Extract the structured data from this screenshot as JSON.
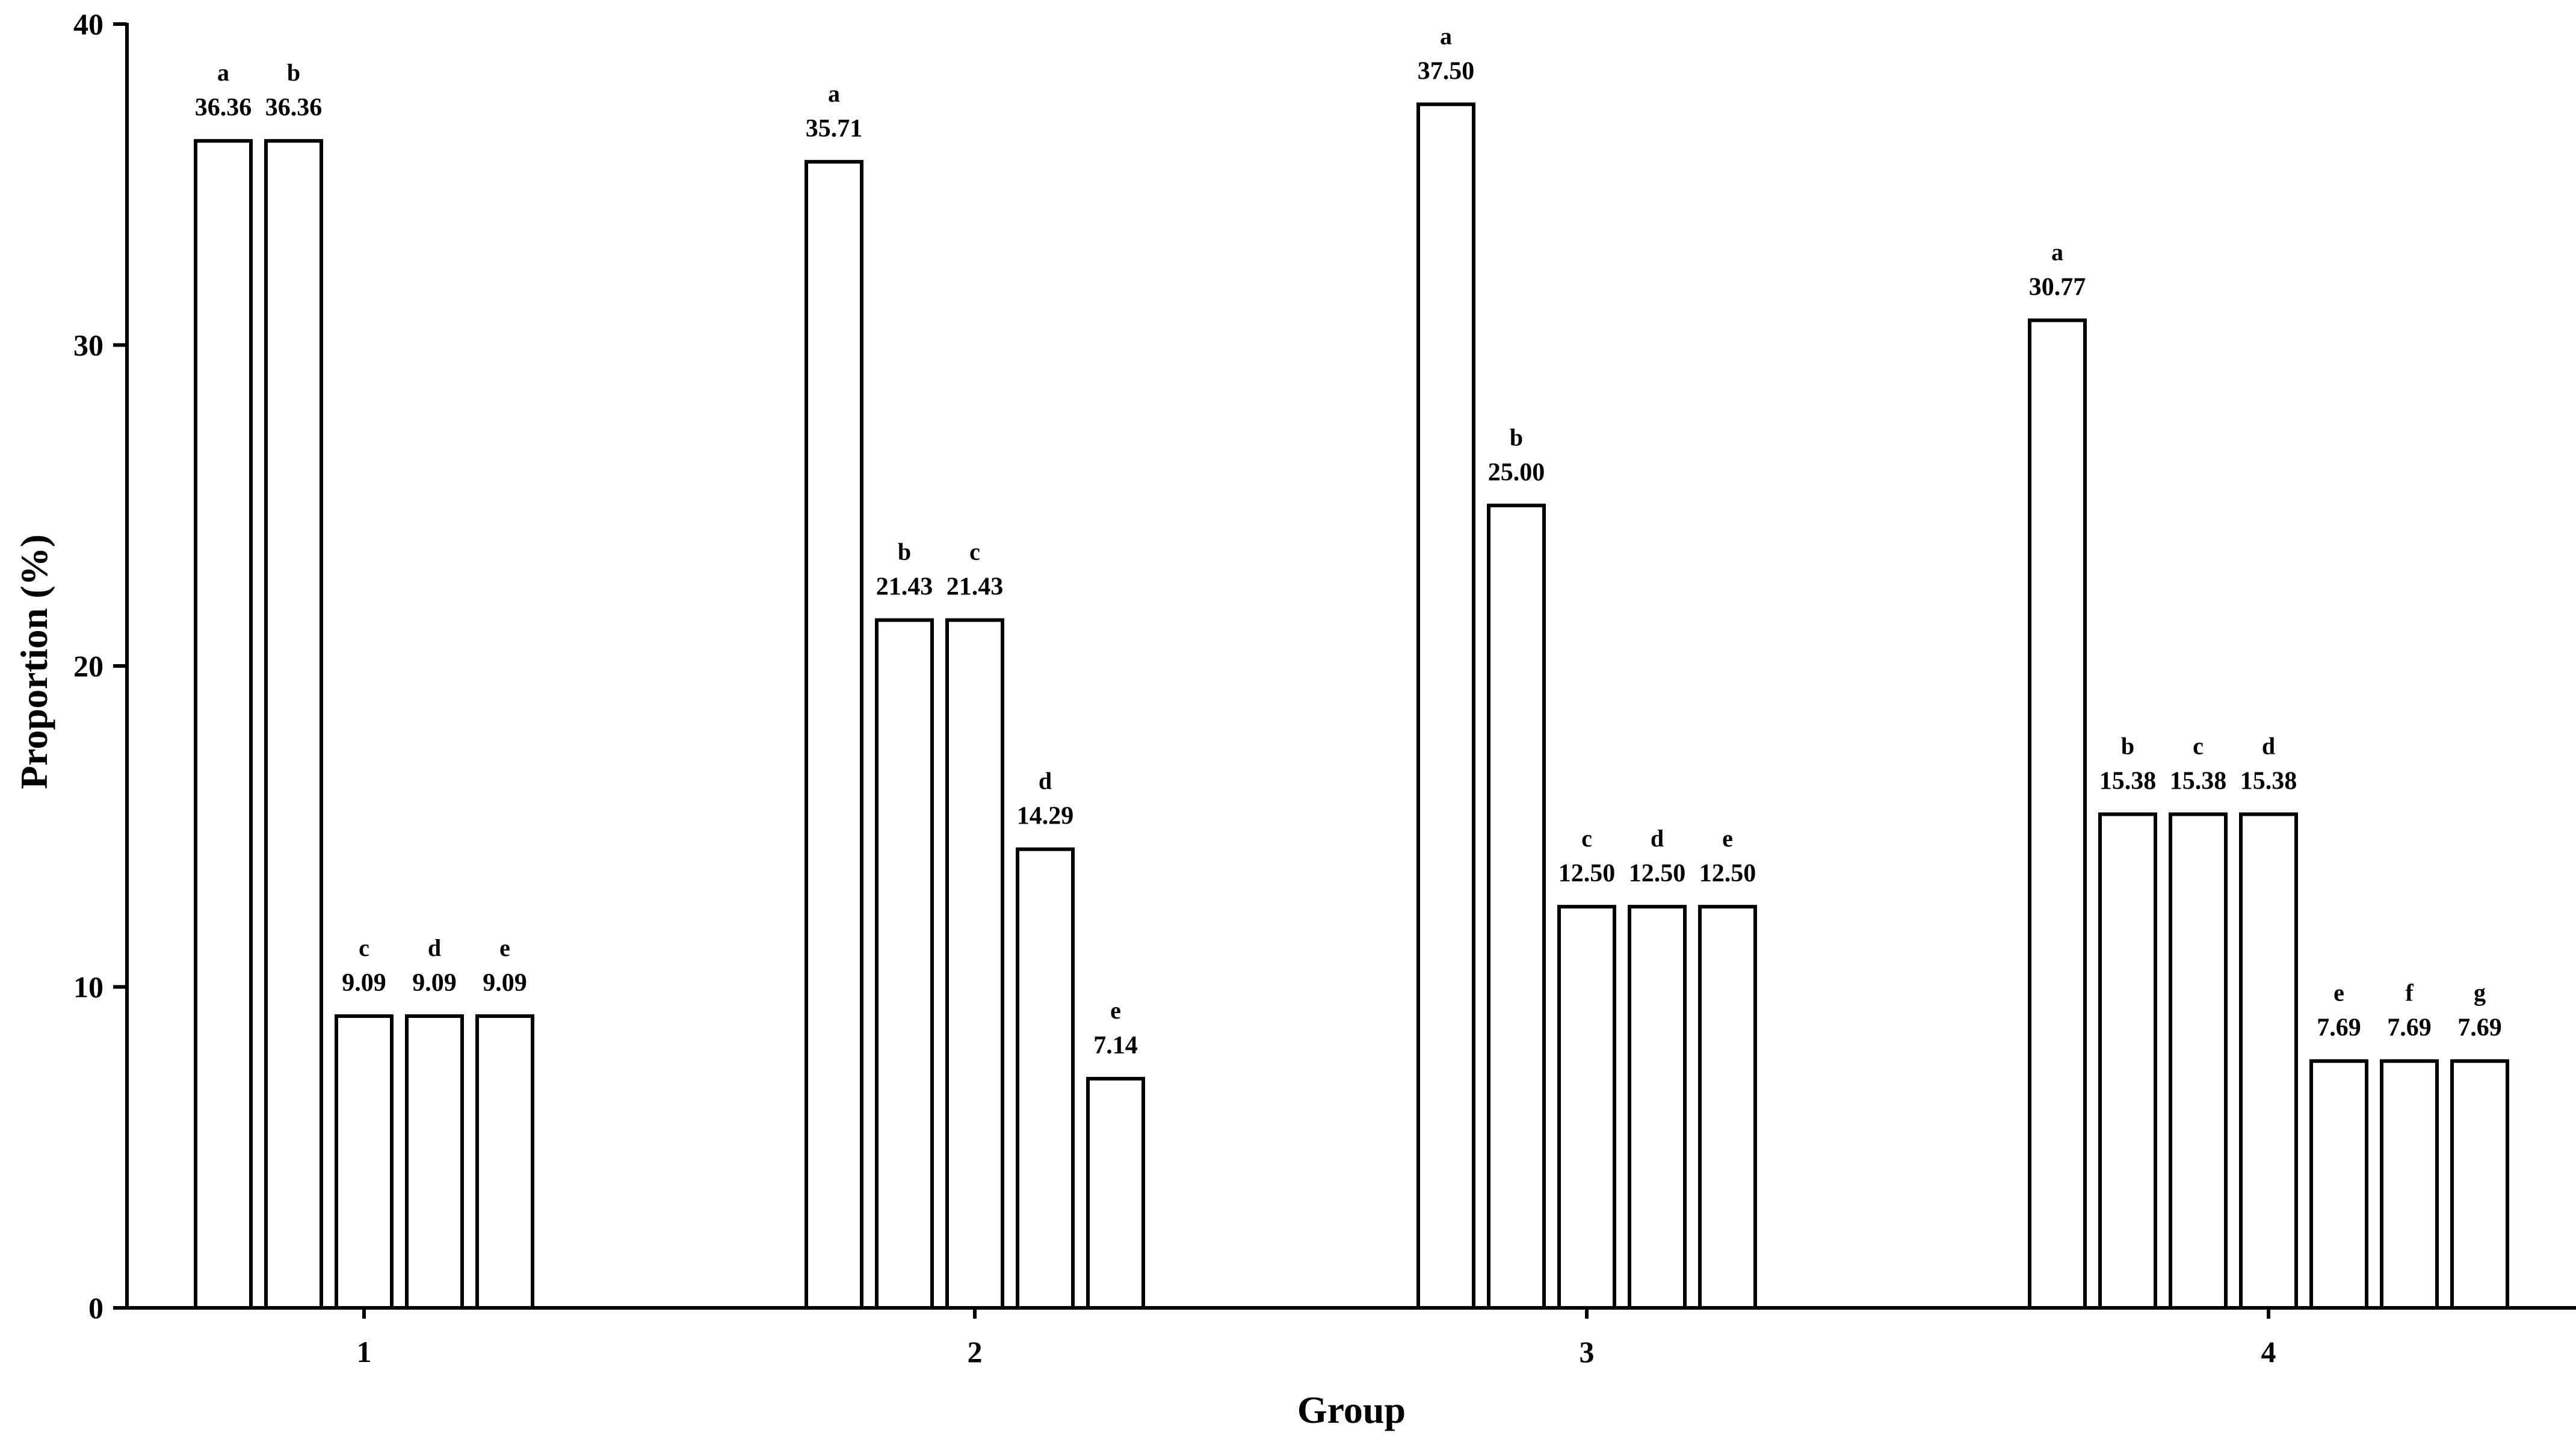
{
  "chart_data": {
    "type": "bar",
    "xlabel": "Group",
    "ylabel": "Proportion (%)",
    "ylim": [
      0,
      40
    ],
    "yticks": [
      0,
      10,
      20,
      30,
      40
    ],
    "grid": false,
    "legend": "none",
    "bar_fill": "#ffffff",
    "bar_stroke": "#000000",
    "groups": [
      {
        "label": "1",
        "bars": [
          {
            "letter": "a",
            "value": 36.36,
            "label": "36.36"
          },
          {
            "letter": "b",
            "value": 36.36,
            "label": "36.36"
          },
          {
            "letter": "c",
            "value": 9.09,
            "label": "9.09"
          },
          {
            "letter": "d",
            "value": 9.09,
            "label": "9.09"
          },
          {
            "letter": "e",
            "value": 9.09,
            "label": "9.09"
          }
        ]
      },
      {
        "label": "2",
        "bars": [
          {
            "letter": "a",
            "value": 35.71,
            "label": "35.71"
          },
          {
            "letter": "b",
            "value": 21.43,
            "label": "21.43"
          },
          {
            "letter": "c",
            "value": 21.43,
            "label": "21.43"
          },
          {
            "letter": "d",
            "value": 14.29,
            "label": "14.29"
          },
          {
            "letter": "e",
            "value": 7.14,
            "label": "7.14"
          }
        ]
      },
      {
        "label": "3",
        "bars": [
          {
            "letter": "a",
            "value": 37.5,
            "label": "37.50"
          },
          {
            "letter": "b",
            "value": 25.0,
            "label": "25.00"
          },
          {
            "letter": "c",
            "value": 12.5,
            "label": "12.50"
          },
          {
            "letter": "d",
            "value": 12.5,
            "label": "12.50"
          },
          {
            "letter": "e",
            "value": 12.5,
            "label": "12.50"
          }
        ]
      },
      {
        "label": "4",
        "bars": [
          {
            "letter": "a",
            "value": 30.77,
            "label": "30.77"
          },
          {
            "letter": "b",
            "value": 15.38,
            "label": "15.38"
          },
          {
            "letter": "c",
            "value": 15.38,
            "label": "15.38"
          },
          {
            "letter": "d",
            "value": 15.38,
            "label": "15.38"
          },
          {
            "letter": "e",
            "value": 7.69,
            "label": "7.69"
          },
          {
            "letter": "f",
            "value": 7.69,
            "label": "7.69"
          },
          {
            "letter": "g",
            "value": 7.69,
            "label": "7.69"
          }
        ]
      }
    ]
  }
}
